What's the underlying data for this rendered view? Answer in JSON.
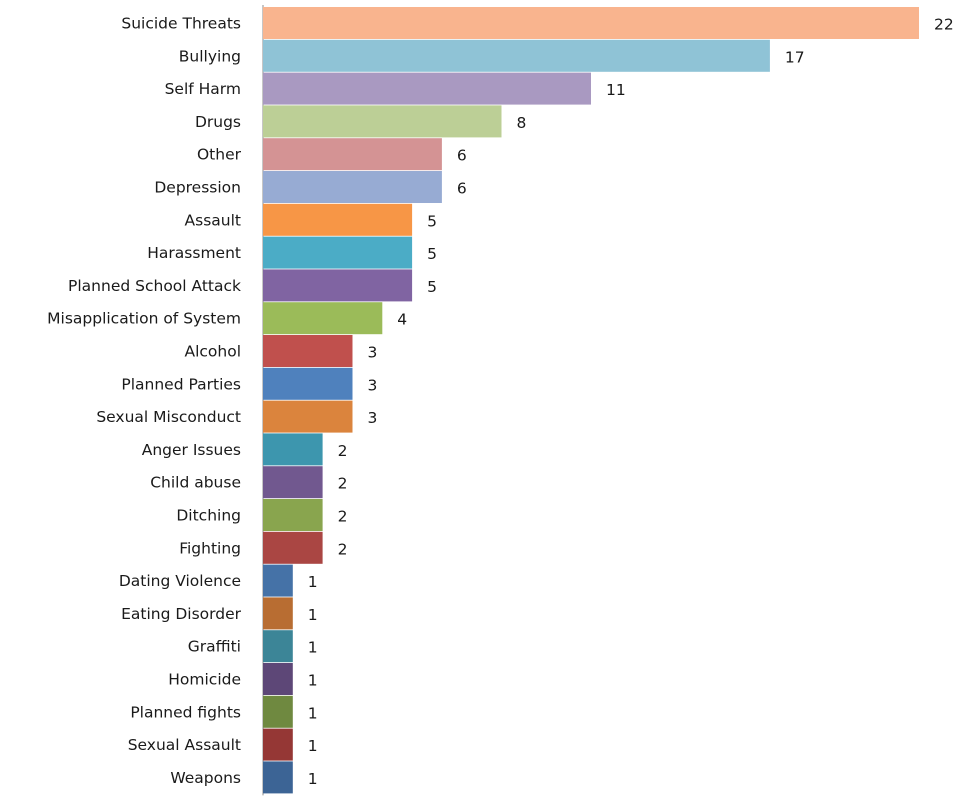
{
  "chart_data": {
    "type": "bar",
    "orientation": "horizontal",
    "categories": [
      "Suicide Threats",
      "Bullying",
      "Self Harm",
      "Drugs",
      "Other",
      "Depression",
      "Assault",
      "Harassment",
      "Planned School Attack",
      "Misapplication of System",
      "Alcohol",
      "Planned Parties",
      "Sexual Misconduct",
      "Anger Issues",
      "Child abuse",
      "Ditching",
      "Fighting",
      "Dating Violence",
      "Eating Disorder",
      "Graffiti",
      "Homicide",
      "Planned fights",
      "Sexual Assault",
      "Weapons"
    ],
    "values": [
      22,
      17,
      11,
      8,
      6,
      6,
      5,
      5,
      5,
      4,
      3,
      3,
      3,
      2,
      2,
      2,
      2,
      1,
      1,
      1,
      1,
      1,
      1,
      1
    ],
    "colors": [
      "#f9b48e",
      "#8fc3d6",
      "#a999c1",
      "#bccf96",
      "#d49394",
      "#97abd3",
      "#f79646",
      "#4bacc6",
      "#8064a2",
      "#9bbb59",
      "#c0504d",
      "#4f81bd",
      "#db843d",
      "#3d96ae",
      "#71588f",
      "#89a54e",
      "#aa4643",
      "#4572a7",
      "#b86d32",
      "#3c8597",
      "#5d4777",
      "#6f8940",
      "#953735",
      "#3c6495"
    ],
    "data_labels": true,
    "xlim": [
      0,
      22
    ],
    "grid": false,
    "legend": "none"
  }
}
